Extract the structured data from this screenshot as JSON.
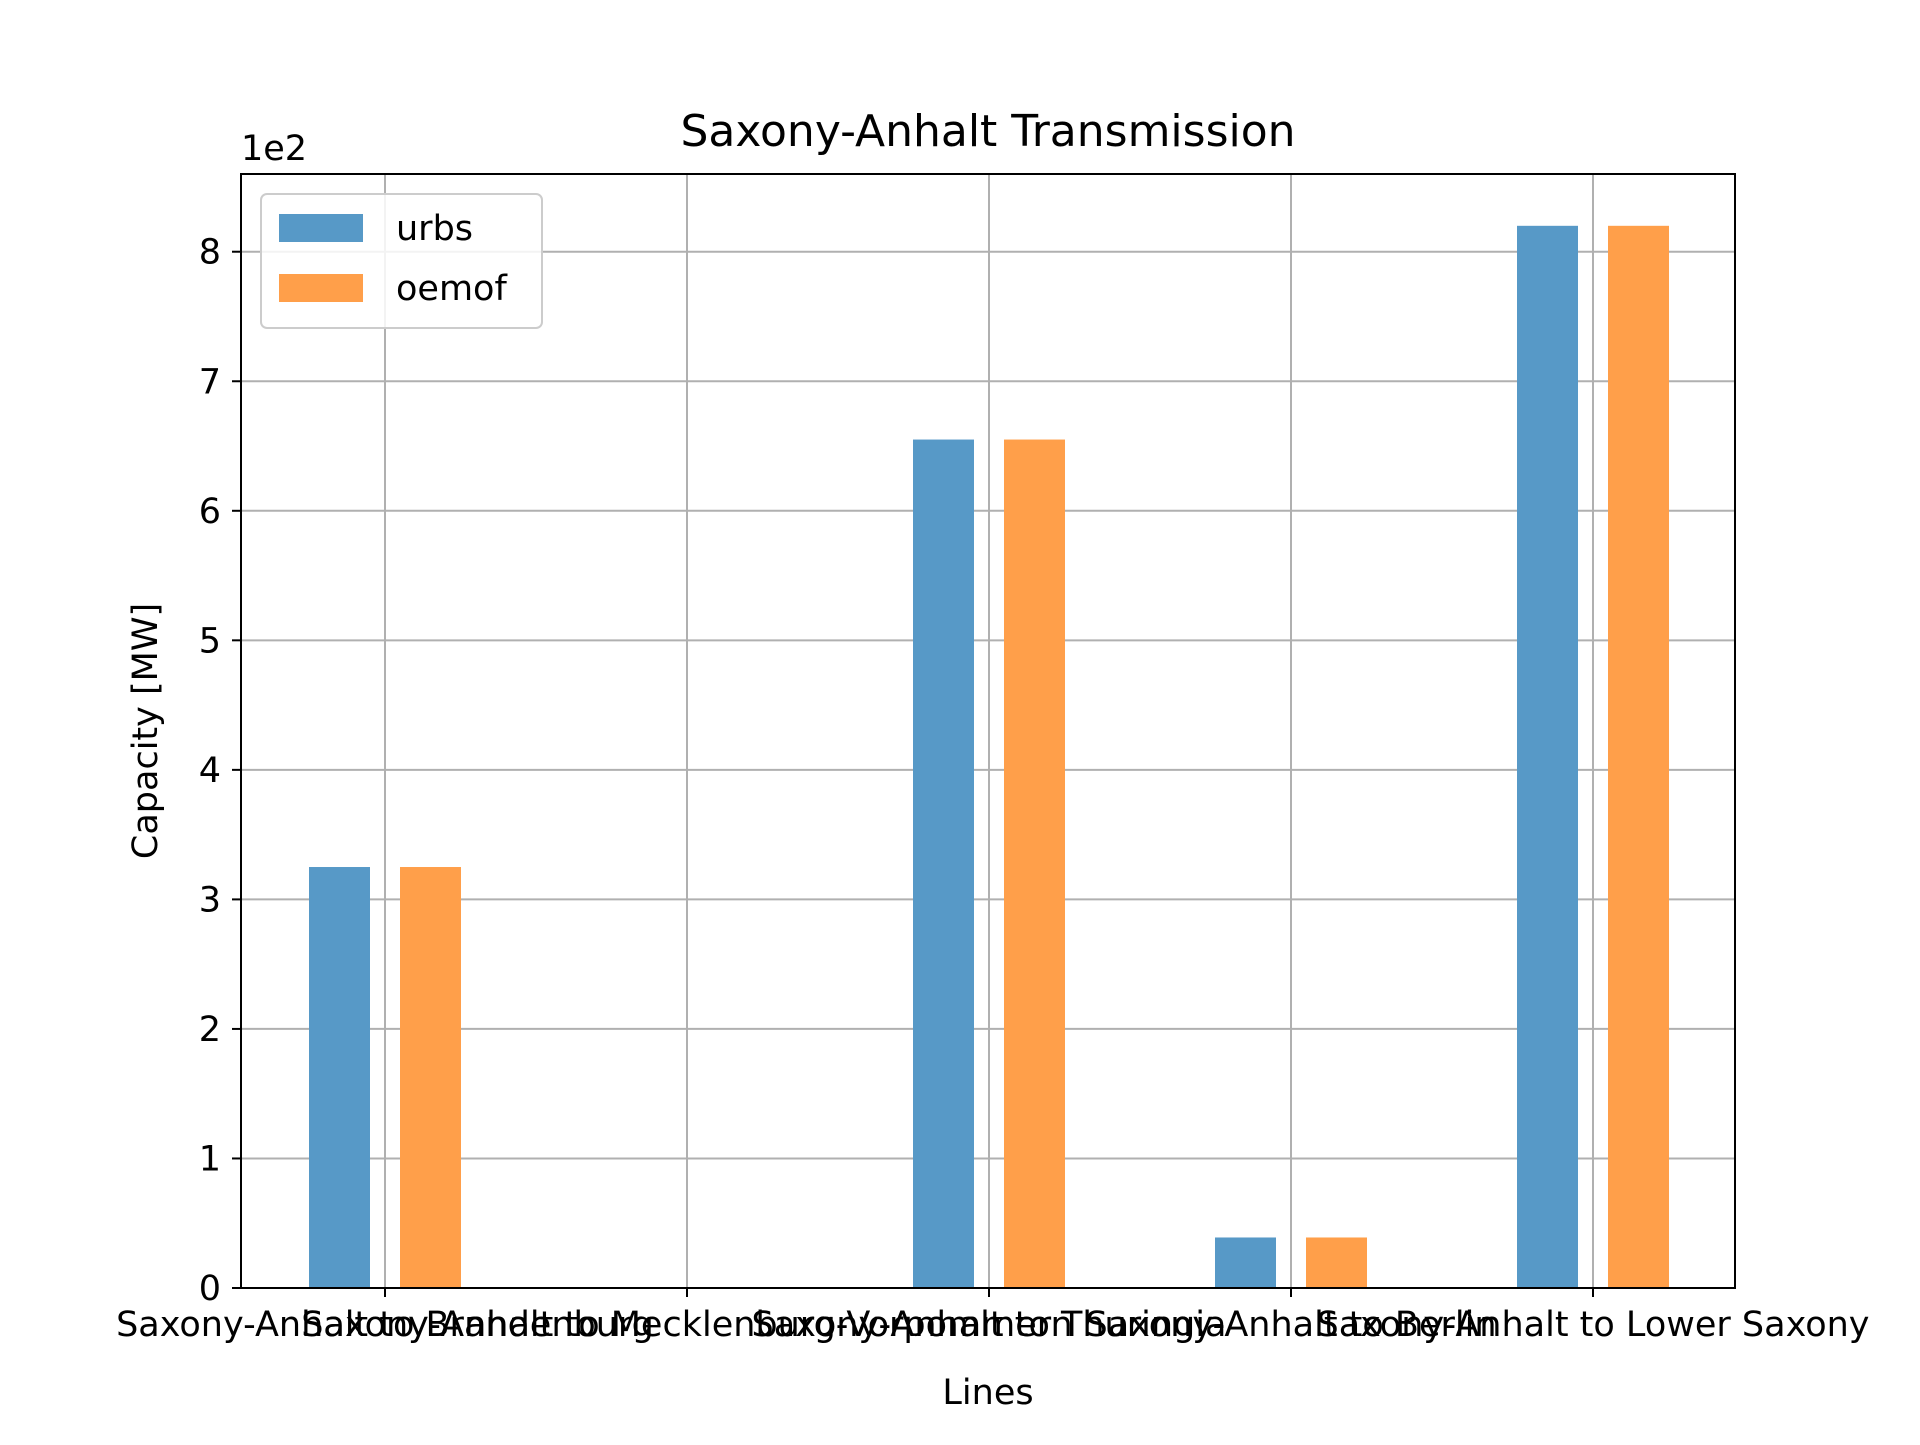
{
  "chart_data": {
    "type": "bar",
    "title": "Saxony-Anhalt Transmission",
    "xlabel": "Lines",
    "ylabel": "Capacity [MW]",
    "y_offset_label": "1e2",
    "categories": [
      "Saxony-Anhalt to Brandenburg",
      "Saxony-Anhalt to Mecklenburg-Vorpommern",
      "Saxony-Anhalt to Thuringia",
      "Saxony-Anhalt to Berlin",
      "Saxony-Anhalt to Lower Saxony"
    ],
    "series": [
      {
        "name": "urbs",
        "color": "#5799c7",
        "values": [
          325,
          0,
          655,
          39,
          820
        ]
      },
      {
        "name": "oemof",
        "color": "#ff9f4a",
        "values": [
          325,
          0,
          655,
          39,
          820
        ]
      }
    ],
    "yticks": [
      0,
      100,
      200,
      300,
      400,
      500,
      600,
      700,
      800
    ],
    "ytick_labels": [
      "0",
      "1",
      "2",
      "3",
      "4",
      "5",
      "6",
      "7",
      "8"
    ],
    "ylim": [
      0,
      860
    ],
    "grid": true,
    "legend_position": "top-left"
  }
}
